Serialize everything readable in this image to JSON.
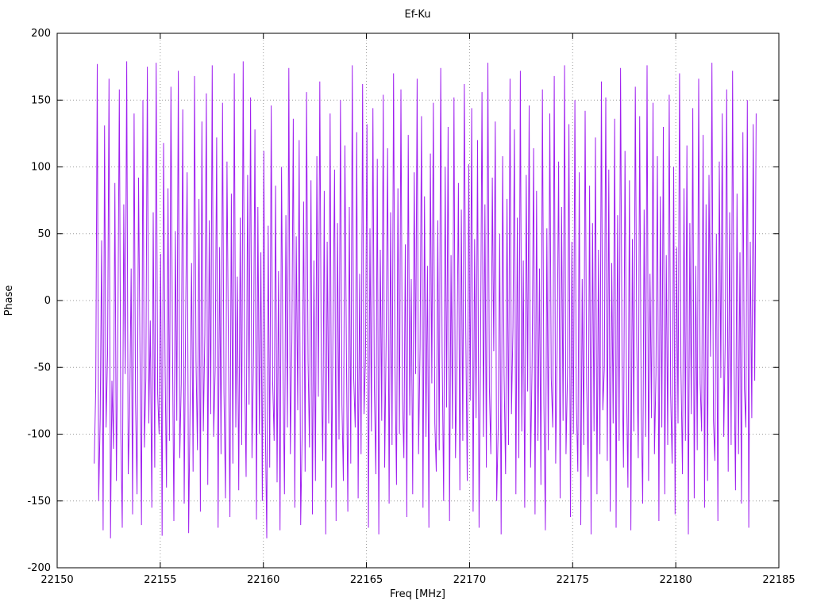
{
  "chart_data": {
    "type": "line",
    "title": "Ef-Ku",
    "xlabel": "Freq [MHz]",
    "ylabel": "Phase",
    "xlim": [
      22150,
      22185
    ],
    "ylim": [
      -200,
      200
    ],
    "x_ticks": [
      22150,
      22155,
      22160,
      22165,
      22170,
      22175,
      22180,
      22185
    ],
    "y_ticks": [
      -200,
      -150,
      -100,
      -50,
      0,
      50,
      100,
      150,
      200
    ],
    "grid": true,
    "grid_style": "dotted",
    "legend": "none",
    "line_color": "#a020f0",
    "border_color": "#000000",
    "grid_color": "#9a9a9a",
    "series": [
      {
        "name": "Ef-Ku phase",
        "x_start": 22151.8,
        "x_end": 22183.9,
        "values": [
          -122,
          -65,
          177,
          -150,
          -88,
          45,
          -172,
          131,
          -95,
          -40,
          166,
          -178,
          -60,
          -111,
          88,
          -135,
          -20,
          158,
          -99,
          -170,
          72,
          -55,
          179,
          -130,
          -85,
          24,
          -160,
          140,
          -75,
          -145,
          92,
          -38,
          -168,
          150,
          -110,
          -58,
          175,
          -92,
          -15,
          -155,
          66,
          -125,
          178,
          -70,
          -100,
          35,
          -176,
          118,
          -48,
          -140,
          84,
          -105,
          160,
          -30,
          -165,
          52,
          -90,
          172,
          -118,
          -62,
          143,
          -152,
          -8,
          96,
          -174,
          -80,
          28,
          -128,
          168,
          -45,
          -112,
          76,
          -158,
          134,
          -98,
          -25,
          155,
          -138,
          60,
          -85,
          176,
          -102,
          -52,
          122,
          -170,
          40,
          -115,
          148,
          -68,
          -148,
          104,
          -35,
          -162,
          80,
          -122,
          170,
          -95,
          18,
          -142,
          62,
          -108,
          179,
          -55,
          -132,
          94,
          -78,
          152,
          -118,
          -42,
          128,
          -164,
          70,
          -100,
          36,
          -150,
          112,
          -88,
          -178,
          56,
          -125,
          146,
          -60,
          -105,
          86,
          -136,
          22,
          -172,
          100,
          -50,
          -145,
          64,
          -95,
          174,
          -115,
          -30,
          136,
          -155,
          48,
          -82,
          120,
          -168,
          -98,
          74,
          -128,
          156,
          -45,
          -110,
          90,
          -160,
          30,
          -135,
          108,
          -72,
          164,
          -50,
          -120,
          82,
          -175,
          44,
          -92,
          140,
          -140,
          -15,
          98,
          -165,
          58,
          -104,
          150,
          -78,
          -135,
          116,
          -38,
          -158,
          70,
          -122,
          176,
          -58,
          -95,
          126,
          -148,
          20,
          -115,
          162,
          -85,
          -42,
          132,
          -170,
          54,
          -98,
          144,
          -65,
          -130,
          106,
          -175,
          38,
          -90,
          154,
          -125,
          -28,
          114,
          -152,
          66,
          -108,
          170,
          -48,
          -138,
          84,
          -100,
          158,
          -70,
          -118,
          42,
          -162,
          124,
          -86,
          16,
          -145,
          96,
          -55,
          166,
          -115,
          -35,
          138,
          -155,
          78,
          -102,
          26,
          -170,
          110,
          -62,
          148,
          -92,
          -128,
          60,
          -112,
          174,
          -40,
          -150,
          100,
          -80,
          130,
          -165,
          34,
          -96,
          152,
          -118,
          -52,
          88,
          -142,
          68,
          -105,
          162,
          -25,
          -135,
          102,
          -75,
          144,
          -158,
          46,
          -88,
          120,
          -170,
          -45,
          156,
          -102,
          72,
          -125,
          178,
          -65,
          -115,
          92,
          -38,
          134,
          -150,
          -95,
          50,
          -175,
          108,
          -55,
          -130,
          76,
          -108,
          166,
          -85,
          -20,
          128,
          -145,
          62,
          -118,
          172,
          -98,
          30,
          -155,
          94,
          -68,
          146,
          -125,
          -48,
          114,
          -160,
          82,
          -105,
          24,
          -138,
          158,
          -78,
          -172,
          54,
          -112,
          140,
          -58,
          -95,
          168,
          -122,
          -35,
          104,
          -148,
          70,
          -90,
          176,
          -115,
          -55,
          132,
          -162,
          44,
          -100,
          150,
          -75,
          -128,
          96,
          -168,
          16,
          -108,
          142,
          -62,
          -132,
          86,
          -175,
          58,
          -98,
          122,
          -145,
          38,
          -115,
          164,
          -82,
          -50,
          152,
          -120,
          98,
          -158,
          28,
          -92,
          136,
          -170,
          64,
          -105,
          174,
          -45,
          -125,
          112,
          -60,
          -140,
          90,
          -172,
          46,
          -98,
          160,
          -30,
          -118,
          138,
          -78,
          -152,
          68,
          -102,
          176,
          -135,
          20,
          -88,
          148,
          -115,
          -55,
          108,
          -165,
          78,
          -95,
          130,
          -145,
          34,
          -108,
          154,
          -70,
          -122,
          100,
          -160,
          40,
          -92,
          170,
          -52,
          -130,
          84,
          -105,
          116,
          -175,
          58,
          -85,
          144,
          -148,
          26,
          -112,
          166,
          -62,
          -98,
          124,
          -155,
          72,
          -135,
          94,
          -42,
          178,
          -90,
          -120,
          50,
          -165,
          104,
          -58,
          140,
          -102,
          -32,
          158,
          -128,
          66,
          -108,
          172,
          -48,
          -142,
          80,
          -115,
          36,
          -152,
          126,
          -66,
          -95,
          150,
          -170,
          44,
          -88,
          132,
          -60,
          140
        ]
      }
    ]
  }
}
